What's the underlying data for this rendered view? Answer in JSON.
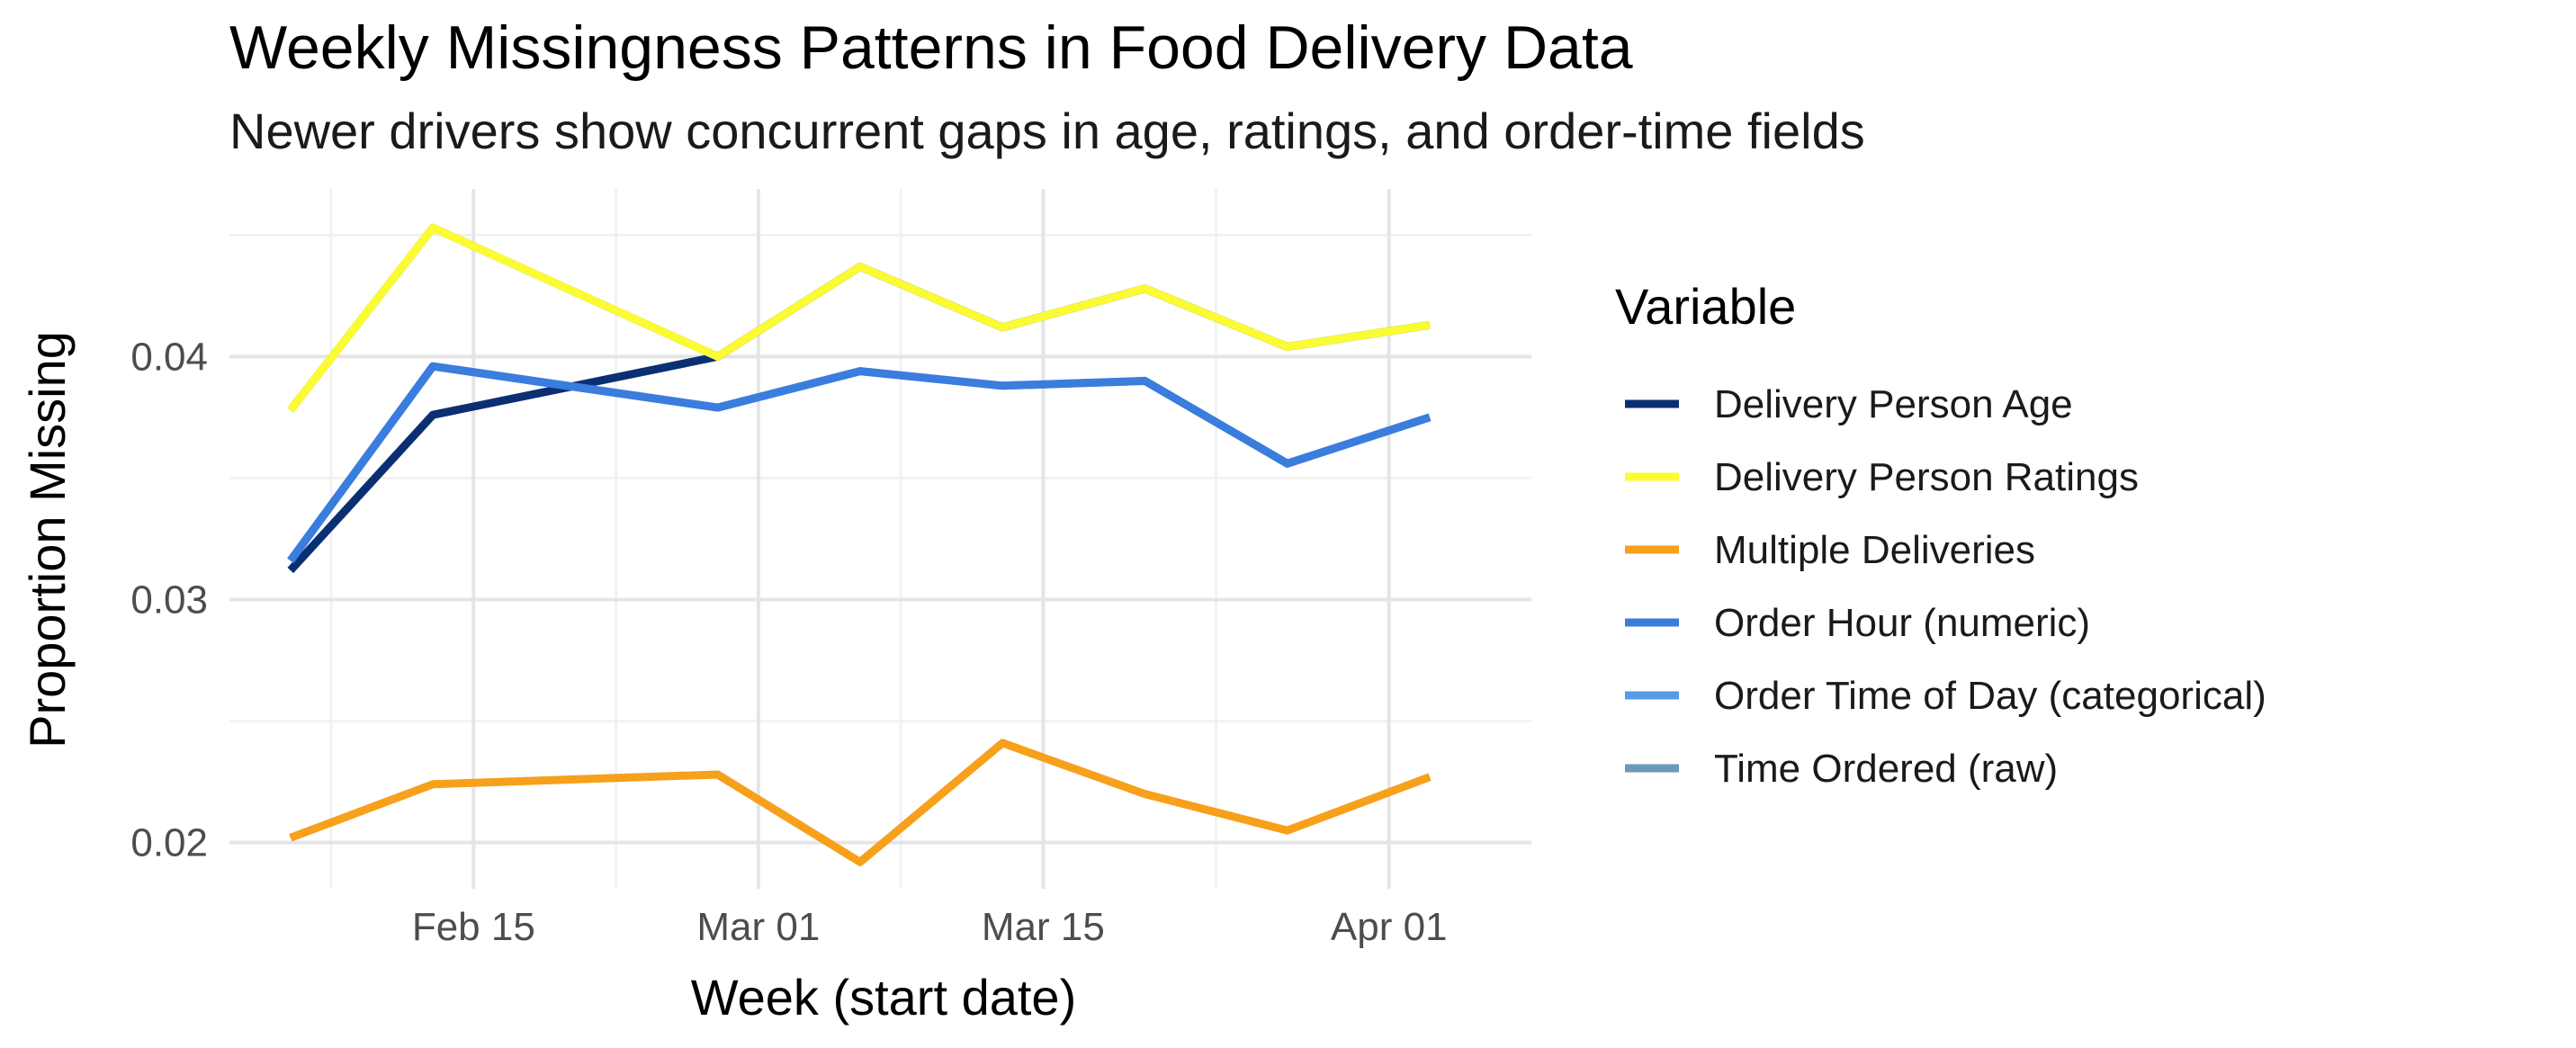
{
  "chart_data": {
    "type": "line",
    "title": "Weekly Missingness Patterns in Food Delivery Data",
    "subtitle": "Newer drivers show concurrent gaps in age, ratings, and order-time fields",
    "xlabel": "Week (start date)",
    "ylabel": "Proportion Missing",
    "x": [
      "2022-02-06",
      "2022-02-13",
      "2022-02-27",
      "2022-03-06",
      "2022-03-13",
      "2022-03-20",
      "2022-03-27",
      "2022-04-03"
    ],
    "x_ticks": [
      {
        "date": "2022-02-15",
        "label": "Feb 15"
      },
      {
        "date": "2022-03-01",
        "label": "Mar 01"
      },
      {
        "date": "2022-03-15",
        "label": "Mar 15"
      },
      {
        "date": "2022-04-01",
        "label": "Apr 01"
      }
    ],
    "xlim": [
      "2022-02-03",
      "2022-04-08"
    ],
    "y_ticks": [
      0.02,
      0.03,
      0.04
    ],
    "y_tick_labels": [
      "0.02",
      "0.03",
      "0.04"
    ],
    "ylim": [
      0.0181,
      0.0469
    ],
    "grid": true,
    "legend_position": "right",
    "legend_title": "Variable",
    "series": [
      {
        "name": "Delivery Person Age",
        "color": "#0b2f73",
        "values": [
          0.0312,
          0.0376,
          0.04,
          0.0437,
          0.0412,
          0.0428,
          0.0404,
          0.0413
        ]
      },
      {
        "name": "Delivery Person Ratings",
        "color": "#fbfb33",
        "values": [
          0.0378,
          0.0453,
          0.04,
          0.0437,
          0.0412,
          0.0428,
          0.0404,
          0.0413
        ]
      },
      {
        "name": "Multiple Deliveries",
        "color": "#f7a01b",
        "values": [
          0.0202,
          0.0224,
          0.0228,
          0.0192,
          0.0241,
          0.022,
          0.0205,
          0.0227
        ]
      },
      {
        "name": "Order Hour (numeric)",
        "color": "#3b7ddd",
        "values": [
          0.0316,
          0.0396,
          0.0379,
          0.0394,
          0.0388,
          0.039,
          0.0356,
          0.0375
        ]
      },
      {
        "name": "Order Time of Day (categorical)",
        "color": "#559be8",
        "values": [
          0.0316,
          0.0396,
          0.0379,
          0.0394,
          0.0388,
          0.039,
          0.0356,
          0.0375
        ]
      },
      {
        "name": "Time Ordered (raw)",
        "color": "#6a9ab8",
        "values": [
          0.0378,
          0.0453,
          0.04,
          0.0437,
          0.0412,
          0.0428,
          0.0404,
          0.0413
        ]
      }
    ]
  }
}
